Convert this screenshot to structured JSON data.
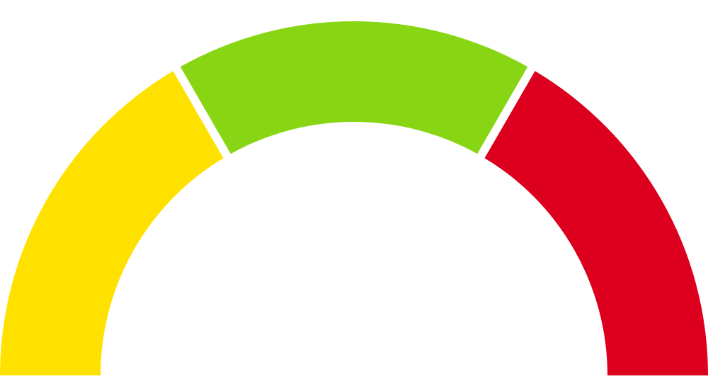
{
  "gauge": {
    "segments": [
      {
        "id": "low",
        "share": 0.333,
        "color": "#FFE100"
      },
      {
        "id": "mid",
        "share": 0.334,
        "color": "#88D613"
      },
      {
        "id": "high",
        "share": 0.333,
        "color": "#DC001E"
      }
    ],
    "background": "#FFFFFF"
  }
}
